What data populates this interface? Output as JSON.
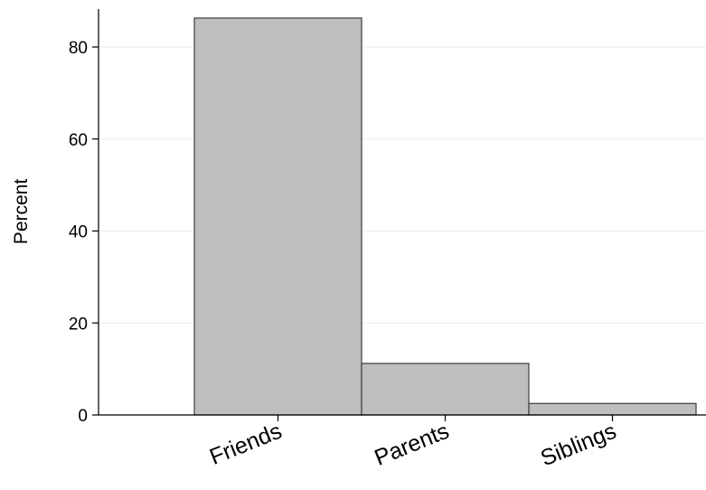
{
  "chart_data": {
    "type": "bar",
    "categories": [
      "Friends",
      "Parents",
      "Siblings"
    ],
    "values": [
      86.3,
      11.2,
      2.5
    ],
    "ylabel": "Percent",
    "xlabel": "",
    "ylim": [
      0,
      90
    ],
    "yticks": [
      0,
      20,
      40,
      60,
      80
    ],
    "grid": true,
    "colors": {
      "bar_fill": "#bebebe",
      "bar_stroke": "#3c3c3c",
      "grid": "#eaeaea",
      "axis": "#000000"
    }
  }
}
